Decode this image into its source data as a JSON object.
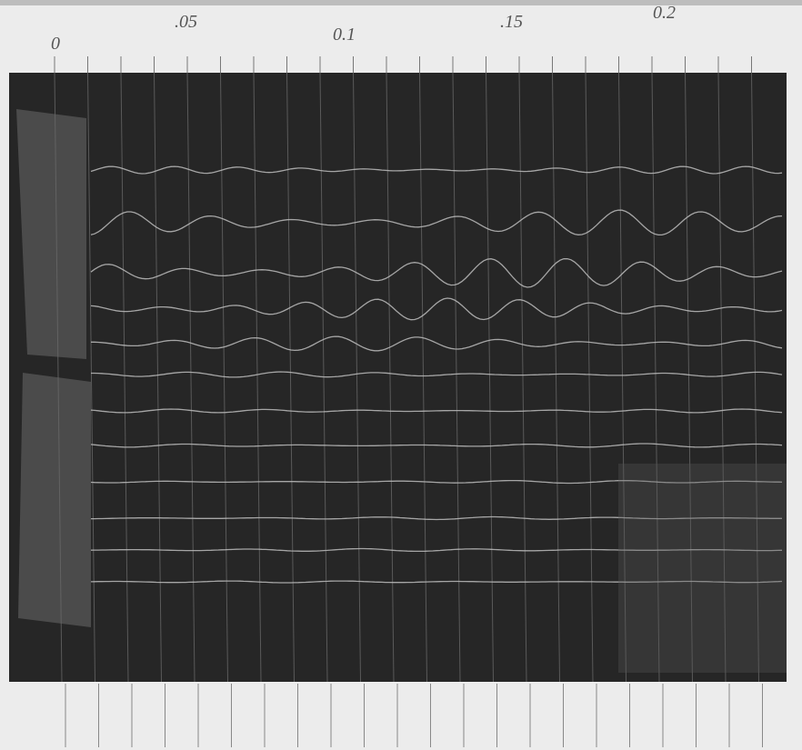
{
  "scale_labels": [
    "0",
    ".05",
    "0.1",
    ".15",
    "0.2"
  ]
}
